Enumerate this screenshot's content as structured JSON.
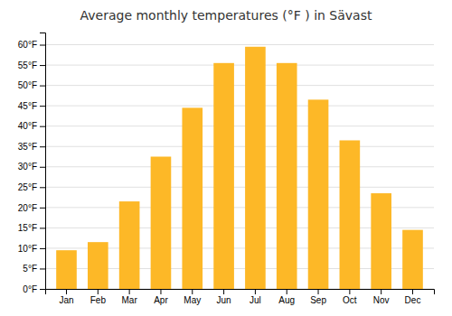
{
  "chart_data": {
    "type": "bar",
    "title": "Average monthly temperatures (°F ) in Sävast",
    "categories": [
      "Jan",
      "Feb",
      "Mar",
      "Apr",
      "May",
      "Jun",
      "Jul",
      "Aug",
      "Sep",
      "Oct",
      "Nov",
      "Dec"
    ],
    "values": [
      9.5,
      11.5,
      21.5,
      32.5,
      44.5,
      55.5,
      59.5,
      55.5,
      46.5,
      36.5,
      23.5,
      14.5
    ],
    "color": "#FDB827",
    "ylim": [
      0,
      63
    ],
    "yticks": [
      {
        "value": 0,
        "label": "0°F"
      },
      {
        "value": 5,
        "label": "5°F"
      },
      {
        "value": 10,
        "label": "10°F"
      },
      {
        "value": 15,
        "label": "15°F"
      },
      {
        "value": 20,
        "label": "20°F"
      },
      {
        "value": 25,
        "label": "25°F"
      },
      {
        "value": 30,
        "label": "30°F"
      },
      {
        "value": 35,
        "label": "35°F"
      },
      {
        "value": 40,
        "label": "40°F"
      },
      {
        "value": 45,
        "label": "45°F"
      },
      {
        "value": 50,
        "label": "50°F"
      },
      {
        "value": 55,
        "label": "55°F"
      },
      {
        "value": 60,
        "label": "60°F"
      }
    ],
    "grid": true
  }
}
